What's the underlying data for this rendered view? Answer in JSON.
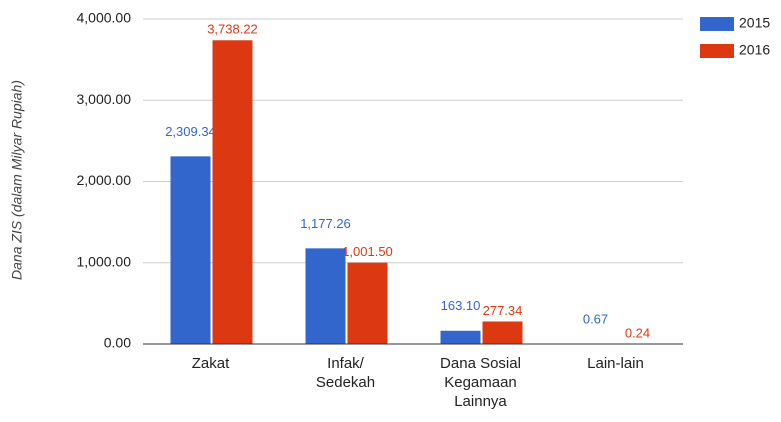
{
  "chart_data": {
    "type": "bar",
    "y_axis_label": "Dana ZIS (dalam Milyar Rupiah)",
    "categories": [
      "Zakat",
      "Infak/ Sedekah",
      "Dana Sosial Kegamaan Lainnya",
      "Lain-lain"
    ],
    "series": [
      {
        "name": "2015",
        "color": "#3366cc",
        "values": [
          2309.34,
          1177.26,
          163.1,
          0.67
        ],
        "value_labels": [
          "2,309.34",
          "1,177.26",
          "163.10",
          "0.67"
        ]
      },
      {
        "name": "2016",
        "color": "#dc3912",
        "values": [
          3738.22,
          1001.5,
          277.34,
          0.24
        ],
        "value_labels": [
          "3,738.22",
          "1,001.50",
          "277.34",
          "0.24"
        ]
      }
    ],
    "ylim": [
      0,
      4000
    ],
    "yticks": [
      {
        "value": 0,
        "label": "0.00"
      },
      {
        "value": 1000,
        "label": "1,000.00"
      },
      {
        "value": 2000,
        "label": "2,000.00"
      },
      {
        "value": 3000,
        "label": "3,000.00"
      },
      {
        "value": 4000,
        "label": "4,000.00"
      }
    ],
    "grid": true,
    "legend": "right"
  }
}
